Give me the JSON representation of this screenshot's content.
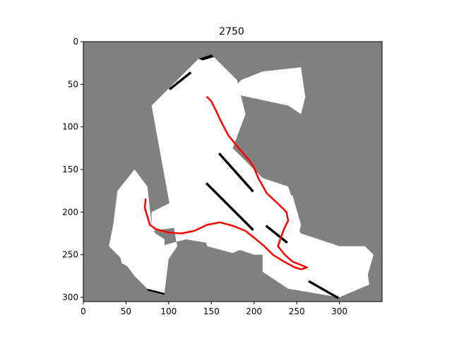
{
  "chart_data": {
    "type": "heatmap",
    "title": "2750",
    "xlabel": "",
    "ylabel": "",
    "xlim": [
      0,
      350
    ],
    "ylim": [
      305,
      0
    ],
    "xticks": [
      0,
      50,
      100,
      150,
      200,
      250,
      300
    ],
    "yticks": [
      0,
      50,
      100,
      150,
      200,
      250,
      300
    ],
    "grid": false,
    "colors": {
      "unknown": "#808080",
      "free": "#ffffff",
      "occupied": "#000000",
      "path": "#ff0000"
    },
    "free_regions": [
      [
        [
          80,
          75
        ],
        [
          135,
          20
        ],
        [
          150,
          15
        ],
        [
          180,
          45
        ],
        [
          190,
          85
        ],
        [
          175,
          125
        ],
        [
          210,
          160
        ],
        [
          240,
          170
        ],
        [
          255,
          215
        ],
        [
          250,
          235
        ],
        [
          230,
          250
        ],
        [
          200,
          250
        ],
        [
          170,
          240
        ],
        [
          120,
          232
        ],
        [
          90,
          240
        ],
        [
          80,
          215
        ],
        [
          75,
          170
        ],
        [
          60,
          150
        ],
        [
          40,
          175
        ],
        [
          35,
          215
        ],
        [
          30,
          240
        ],
        [
          45,
          255
        ],
        [
          60,
          275
        ],
        [
          75,
          290
        ],
        [
          95,
          295
        ],
        [
          100,
          255
        ],
        [
          110,
          240
        ]
      ],
      [
        [
          80,
          80
        ],
        [
          195,
          180
        ],
        [
          225,
          200
        ],
        [
          245,
          180
        ],
        [
          255,
          215
        ],
        [
          225,
          230
        ],
        [
          205,
          235
        ],
        [
          175,
          248
        ],
        [
          145,
          240
        ],
        [
          140,
          220
        ],
        [
          150,
          200
        ],
        [
          170,
          180
        ]
      ],
      [
        [
          170,
          60
        ],
        [
          185,
          45
        ],
        [
          210,
          35
        ],
        [
          255,
          30
        ],
        [
          260,
          65
        ],
        [
          255,
          85
        ],
        [
          240,
          75
        ]
      ],
      [
        [
          80,
          200
        ],
        [
          130,
          175
        ],
        [
          175,
          175
        ],
        [
          200,
          200
        ],
        [
          200,
          215
        ],
        [
          150,
          215
        ],
        [
          110,
          218
        ],
        [
          80,
          222
        ]
      ],
      [
        [
          35,
          215
        ],
        [
          60,
          212
        ],
        [
          80,
          222
        ],
        [
          95,
          232
        ],
        [
          95,
          255
        ],
        [
          75,
          275
        ],
        [
          45,
          260
        ]
      ],
      [
        [
          210,
          170
        ],
        [
          225,
          175
        ],
        [
          255,
          225
        ],
        [
          330,
          250
        ],
        [
          335,
          285
        ],
        [
          300,
          300
        ],
        [
          240,
          290
        ],
        [
          210,
          270
        ]
      ],
      [
        [
          300,
          240
        ],
        [
          330,
          240
        ],
        [
          340,
          250
        ],
        [
          330,
          285
        ],
        [
          305,
          295
        ]
      ]
    ],
    "obstacles": [
      [
        [
          135,
          20
        ],
        [
          150,
          15
        ],
        [
          153,
          18
        ],
        [
          140,
          22
        ]
      ],
      [
        [
          100,
          55
        ],
        [
          125,
          35
        ],
        [
          127,
          37
        ],
        [
          102,
          57
        ]
      ],
      [
        [
          145,
          165
        ],
        [
          200,
          220
        ],
        [
          198,
          222
        ],
        [
          143,
          167
        ]
      ],
      [
        [
          160,
          130
        ],
        [
          200,
          175
        ],
        [
          198,
          177
        ],
        [
          158,
          132
        ]
      ],
      [
        [
          215,
          215
        ],
        [
          240,
          235
        ],
        [
          238,
          237
        ],
        [
          213,
          217
        ]
      ],
      [
        [
          75,
          290
        ],
        [
          95,
          295
        ],
        [
          95,
          297
        ],
        [
          75,
          292
        ]
      ],
      [
        [
          265,
          280
        ],
        [
          300,
          300
        ],
        [
          298,
          302
        ],
        [
          263,
          282
        ]
      ]
    ],
    "path": [
      [
        145,
        65
      ],
      [
        150,
        70
      ],
      [
        155,
        80
      ],
      [
        162,
        95
      ],
      [
        170,
        110
      ],
      [
        182,
        125
      ],
      [
        195,
        140
      ],
      [
        200,
        148
      ],
      [
        205,
        160
      ],
      [
        215,
        178
      ],
      [
        228,
        190
      ],
      [
        238,
        200
      ],
      [
        240,
        210
      ],
      [
        235,
        220
      ],
      [
        228,
        240
      ],
      [
        236,
        250
      ],
      [
        245,
        258
      ],
      [
        255,
        262
      ],
      [
        262,
        265
      ],
      [
        255,
        267
      ],
      [
        248,
        265
      ],
      [
        235,
        258
      ],
      [
        222,
        250
      ],
      [
        212,
        240
      ],
      [
        200,
        230
      ],
      [
        190,
        222
      ],
      [
        175,
        216
      ],
      [
        160,
        212
      ],
      [
        145,
        215
      ],
      [
        130,
        222
      ],
      [
        115,
        225
      ],
      [
        100,
        224
      ],
      [
        85,
        220
      ],
      [
        78,
        215
      ],
      [
        75,
        205
      ],
      [
        72,
        195
      ],
      [
        73,
        185
      ]
    ]
  }
}
